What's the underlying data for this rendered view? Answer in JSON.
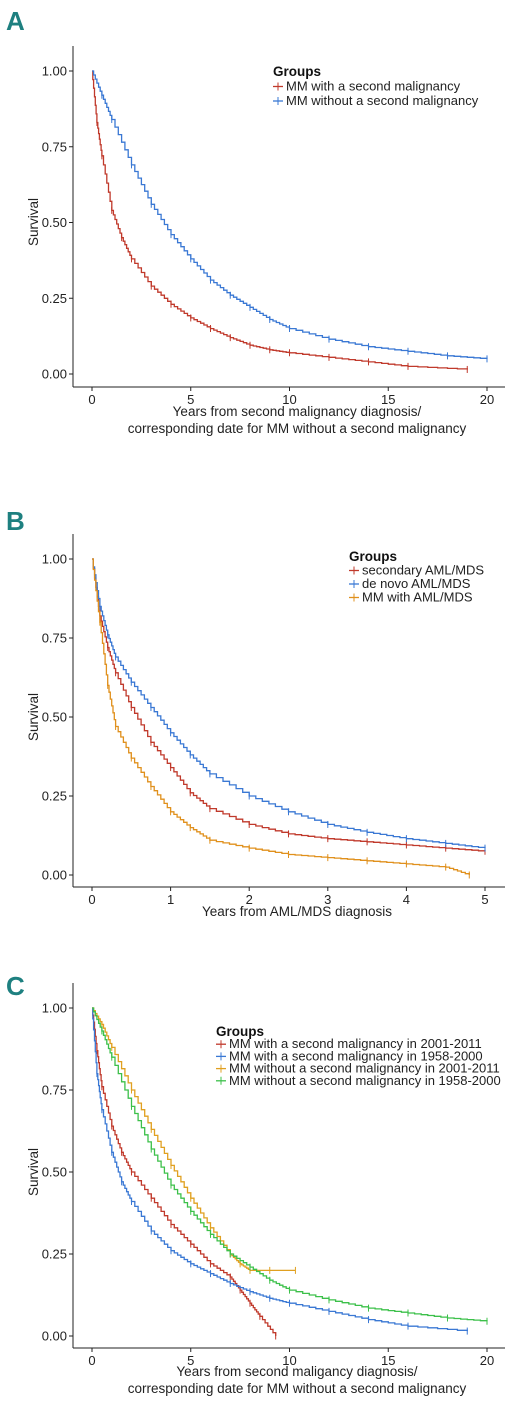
{
  "chart_data": [
    {
      "panel": "A",
      "type": "line",
      "xlabel_lines": [
        "Years from second malignancy diagnosis/",
        "corresponding date for MM without a second malignancy"
      ],
      "ylabel": "Survival",
      "xlim": [
        0,
        20
      ],
      "ylim": [
        0,
        1
      ],
      "x_ticks": [
        0,
        5,
        10,
        15,
        20
      ],
      "y_ticks": [
        0.0,
        0.25,
        0.5,
        0.75,
        1.0
      ],
      "y_tick_labels": [
        "0.00",
        "0.25",
        "0.50",
        "0.75",
        "1.00"
      ],
      "legend_title": "Groups",
      "legend_position": "top-right",
      "series": [
        {
          "name": "MM with a second malignancy",
          "color": "#c0392b",
          "x": [
            0,
            0.25,
            0.5,
            1,
            1.5,
            2,
            3,
            4,
            5,
            6,
            7,
            8,
            9,
            10,
            12,
            14,
            16,
            19
          ],
          "y": [
            1.0,
            0.83,
            0.72,
            0.54,
            0.45,
            0.38,
            0.29,
            0.23,
            0.185,
            0.15,
            0.12,
            0.095,
            0.08,
            0.07,
            0.055,
            0.04,
            0.025,
            0.015
          ]
        },
        {
          "name": "MM without a second malignancy",
          "color": "#3a78d4",
          "x": [
            0,
            0.5,
            1,
            2,
            3,
            4,
            5,
            6,
            7,
            8,
            9,
            10,
            12,
            14,
            16,
            18,
            20
          ],
          "y": [
            1.0,
            0.92,
            0.84,
            0.69,
            0.56,
            0.46,
            0.38,
            0.31,
            0.26,
            0.22,
            0.18,
            0.15,
            0.115,
            0.09,
            0.075,
            0.06,
            0.05
          ]
        }
      ]
    },
    {
      "panel": "B",
      "type": "line",
      "xlabel_lines": [
        "Years from AML/MDS diagnosis"
      ],
      "ylabel": "Survival",
      "xlim": [
        0,
        5
      ],
      "ylim": [
        0,
        1
      ],
      "x_ticks": [
        0,
        1,
        2,
        3,
        4,
        5
      ],
      "y_ticks": [
        0.0,
        0.25,
        0.5,
        0.75,
        1.0
      ],
      "y_tick_labels": [
        "0.00",
        "0.25",
        "0.50",
        "0.75",
        "1.00"
      ],
      "legend_title": "Groups",
      "legend_position": "top-right",
      "series": [
        {
          "name": "secondary AML/MDS",
          "color": "#c0392b",
          "x": [
            0,
            0.1,
            0.2,
            0.3,
            0.5,
            0.75,
            1,
            1.25,
            1.5,
            2,
            2.5,
            3,
            3.5,
            4,
            4.5,
            5
          ],
          "y": [
            1.0,
            0.82,
            0.72,
            0.64,
            0.53,
            0.42,
            0.34,
            0.26,
            0.21,
            0.16,
            0.13,
            0.115,
            0.105,
            0.095,
            0.085,
            0.075
          ]
        },
        {
          "name": "de novo AML/MDS",
          "color": "#3a78d4",
          "x": [
            0,
            0.1,
            0.2,
            0.3,
            0.5,
            0.75,
            1,
            1.25,
            1.5,
            2,
            2.5,
            3,
            3.5,
            4,
            4.5,
            5
          ],
          "y": [
            1.0,
            0.85,
            0.76,
            0.69,
            0.61,
            0.53,
            0.45,
            0.38,
            0.32,
            0.25,
            0.2,
            0.16,
            0.135,
            0.115,
            0.1,
            0.085
          ]
        },
        {
          "name": "MM with AML/MDS",
          "color": "#e0901c",
          "x": [
            0,
            0.1,
            0.2,
            0.3,
            0.5,
            0.75,
            1,
            1.25,
            1.5,
            2,
            2.5,
            3,
            3.5,
            4,
            4.5,
            4.8
          ],
          "y": [
            1.0,
            0.8,
            0.6,
            0.47,
            0.37,
            0.28,
            0.2,
            0.15,
            0.11,
            0.085,
            0.065,
            0.055,
            0.045,
            0.035,
            0.025,
            0.0
          ]
        }
      ]
    },
    {
      "panel": "C",
      "type": "line",
      "xlabel_lines": [
        "Years from second maligancy diagnosis/",
        "corresponding date for MM without a second malignancy"
      ],
      "ylabel": "Survival",
      "xlim": [
        0,
        20
      ],
      "ylim": [
        0,
        1
      ],
      "x_ticks": [
        0,
        5,
        10,
        15,
        20
      ],
      "y_ticks": [
        0.0,
        0.25,
        0.5,
        0.75,
        1.0
      ],
      "y_tick_labels": [
        "0.00",
        "0.25",
        "0.50",
        "0.75",
        "1.00"
      ],
      "legend_title": "Groups",
      "legend_position": "top-right",
      "series": [
        {
          "name": "MM with a second malignancy in 2001-2011",
          "color": "#c0392b",
          "x": [
            0,
            0.25,
            0.5,
            1,
            1.5,
            2,
            3,
            4,
            5,
            6,
            7,
            7.5,
            8,
            8.5,
            9.3
          ],
          "y": [
            1.0,
            0.87,
            0.76,
            0.64,
            0.56,
            0.5,
            0.42,
            0.34,
            0.28,
            0.22,
            0.18,
            0.14,
            0.1,
            0.06,
            0.0
          ]
        },
        {
          "name": "MM with a second malignancy in 1958-2000",
          "color": "#3a78d4",
          "x": [
            0,
            0.25,
            0.5,
            1,
            1.5,
            2,
            3,
            4,
            5,
            6,
            7,
            8,
            9,
            10,
            12,
            14,
            16,
            19
          ],
          "y": [
            1.0,
            0.8,
            0.69,
            0.56,
            0.47,
            0.41,
            0.32,
            0.26,
            0.22,
            0.19,
            0.16,
            0.135,
            0.115,
            0.1,
            0.075,
            0.05,
            0.03,
            0.015
          ]
        },
        {
          "name": "MM without a second malignancy in 2001-2011",
          "color": "#e0a020",
          "x": [
            0,
            0.5,
            1,
            2,
            3,
            4,
            5,
            6,
            7,
            7.5,
            8,
            9,
            10.3
          ],
          "y": [
            1.0,
            0.95,
            0.88,
            0.75,
            0.63,
            0.52,
            0.42,
            0.33,
            0.25,
            0.22,
            0.2,
            0.2,
            0.2
          ]
        },
        {
          "name": "MM without a second malignancy in 1958-2000",
          "color": "#3cc04a",
          "x": [
            0,
            0.5,
            1,
            2,
            3,
            4,
            5,
            6,
            7,
            8,
            9,
            10,
            12,
            14,
            16,
            18,
            20
          ],
          "y": [
            1.0,
            0.93,
            0.85,
            0.7,
            0.57,
            0.46,
            0.38,
            0.31,
            0.25,
            0.21,
            0.17,
            0.14,
            0.11,
            0.085,
            0.07,
            0.055,
            0.045
          ]
        }
      ]
    }
  ]
}
